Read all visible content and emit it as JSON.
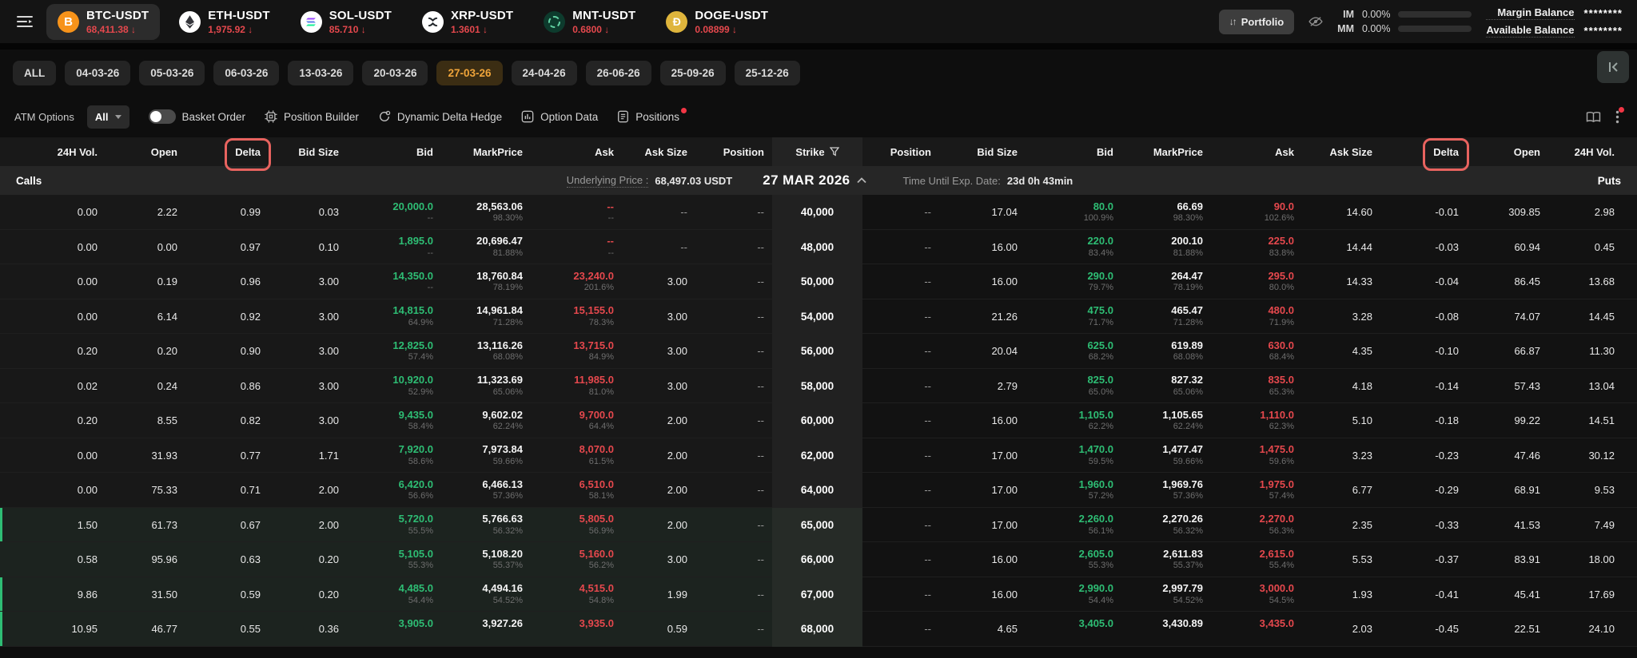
{
  "topbar": {
    "tickers": [
      {
        "symbol": "BTC-USDT",
        "price": "68,411.38",
        "direction": "down",
        "icon": "btc",
        "active": true
      },
      {
        "symbol": "ETH-USDT",
        "price": "1,975.92",
        "direction": "down",
        "icon": "eth",
        "active": false
      },
      {
        "symbol": "SOL-USDT",
        "price": "85.710",
        "direction": "down",
        "icon": "sol",
        "active": false
      },
      {
        "symbol": "XRP-USDT",
        "price": "1.3601",
        "direction": "down",
        "icon": "xrp",
        "active": false
      },
      {
        "symbol": "MNT-USDT",
        "price": "0.6800",
        "direction": "down",
        "icon": "mnt",
        "active": false
      },
      {
        "symbol": "DOGE-USDT",
        "price": "0.08899",
        "direction": "down",
        "icon": "doge",
        "active": false
      }
    ],
    "portfolio_button": "Portfolio",
    "im_label": "IM",
    "im_value": "0.00%",
    "mm_label": "MM",
    "mm_value": "0.00%",
    "margin_balance_label": "Margin Balance",
    "margin_balance_value": "********",
    "available_balance_label": "Available Balance",
    "available_balance_value": "********"
  },
  "expiry_tabs": {
    "items": [
      "ALL",
      "04-03-26",
      "05-03-26",
      "06-03-26",
      "13-03-26",
      "20-03-26",
      "27-03-26",
      "24-04-26",
      "26-06-26",
      "25-09-26",
      "25-12-26"
    ],
    "active": "27-03-26"
  },
  "toolbar": {
    "atm_options_label": "ATM Options",
    "atm_select_value": "All",
    "basket_order": "Basket Order",
    "position_builder": "Position Builder",
    "dynamic_delta_hedge": "Dynamic Delta Hedge",
    "option_data": "Option Data",
    "positions": "Positions"
  },
  "chain": {
    "calls_label": "Calls",
    "puts_label": "Puts",
    "underlying_price_label": "Underlying Price :",
    "underlying_price_value": "68,497.03 USDT",
    "expiry_title": "27 MAR 2026",
    "time_until_label": "Time Until Exp. Date:",
    "time_until_value": "23d 0h 43min",
    "calls_headers": [
      "24H Vol.",
      "Open",
      "Delta",
      "Bid Size",
      "Bid",
      "MarkPrice",
      "Ask",
      "Ask Size",
      "Position"
    ],
    "strike_header": "Strike",
    "puts_headers": [
      "Position",
      "Bid Size",
      "Bid",
      "MarkPrice",
      "Ask",
      "Ask Size",
      "Delta",
      "Open",
      "24H Vol."
    ],
    "highlighted_header": "Delta",
    "rows": [
      {
        "strike": "40,000",
        "accent": false,
        "near": false,
        "calls": {
          "vol": "0.00",
          "open": "2.22",
          "delta": "0.99",
          "bidSize": "0.03",
          "bid": "20,000.0",
          "bidPct": "--",
          "mark": "28,563.06",
          "markPct": "98.30%",
          "ask": "--",
          "askPct": "--",
          "askSize": "--",
          "pos": "--"
        },
        "puts": {
          "pos": "--",
          "bidSize": "17.04",
          "bid": "80.0",
          "bidPct": "100.9%",
          "mark": "66.69",
          "markPct": "98.30%",
          "ask": "90.0",
          "askPct": "102.6%",
          "askSize": "14.60",
          "delta": "-0.01",
          "open": "309.85",
          "vol": "2.98"
        }
      },
      {
        "strike": "48,000",
        "accent": false,
        "near": false,
        "calls": {
          "vol": "0.00",
          "open": "0.00",
          "delta": "0.97",
          "bidSize": "0.10",
          "bid": "1,895.0",
          "bidPct": "--",
          "mark": "20,696.47",
          "markPct": "81.88%",
          "ask": "--",
          "askPct": "--",
          "askSize": "--",
          "pos": "--"
        },
        "puts": {
          "pos": "--",
          "bidSize": "16.00",
          "bid": "220.0",
          "bidPct": "83.4%",
          "mark": "200.10",
          "markPct": "81.88%",
          "ask": "225.0",
          "askPct": "83.8%",
          "askSize": "14.44",
          "delta": "-0.03",
          "open": "60.94",
          "vol": "0.45"
        }
      },
      {
        "strike": "50,000",
        "accent": false,
        "near": false,
        "calls": {
          "vol": "0.00",
          "open": "0.19",
          "delta": "0.96",
          "bidSize": "3.00",
          "bid": "14,350.0",
          "bidPct": "--",
          "mark": "18,760.84",
          "markPct": "78.19%",
          "ask": "23,240.0",
          "askPct": "201.6%",
          "askSize": "3.00",
          "pos": "--"
        },
        "puts": {
          "pos": "--",
          "bidSize": "16.00",
          "bid": "290.0",
          "bidPct": "79.7%",
          "mark": "264.47",
          "markPct": "78.19%",
          "ask": "295.0",
          "askPct": "80.0%",
          "askSize": "14.33",
          "delta": "-0.04",
          "open": "86.45",
          "vol": "13.68"
        }
      },
      {
        "strike": "54,000",
        "accent": false,
        "near": false,
        "calls": {
          "vol": "0.00",
          "open": "6.14",
          "delta": "0.92",
          "bidSize": "3.00",
          "bid": "14,815.0",
          "bidPct": "64.9%",
          "mark": "14,961.84",
          "markPct": "71.28%",
          "ask": "15,155.0",
          "askPct": "78.3%",
          "askSize": "3.00",
          "pos": "--"
        },
        "puts": {
          "pos": "--",
          "bidSize": "21.26",
          "bid": "475.0",
          "bidPct": "71.7%",
          "mark": "465.47",
          "markPct": "71.28%",
          "ask": "480.0",
          "askPct": "71.9%",
          "askSize": "3.28",
          "delta": "-0.08",
          "open": "74.07",
          "vol": "14.45"
        }
      },
      {
        "strike": "56,000",
        "accent": false,
        "near": false,
        "calls": {
          "vol": "0.20",
          "open": "0.20",
          "delta": "0.90",
          "bidSize": "3.00",
          "bid": "12,825.0",
          "bidPct": "57.4%",
          "mark": "13,116.26",
          "markPct": "68.08%",
          "ask": "13,715.0",
          "askPct": "84.9%",
          "askSize": "3.00",
          "pos": "--"
        },
        "puts": {
          "pos": "--",
          "bidSize": "20.04",
          "bid": "625.0",
          "bidPct": "68.2%",
          "mark": "619.89",
          "markPct": "68.08%",
          "ask": "630.0",
          "askPct": "68.4%",
          "askSize": "4.35",
          "delta": "-0.10",
          "open": "66.87",
          "vol": "11.30"
        }
      },
      {
        "strike": "58,000",
        "accent": false,
        "near": false,
        "calls": {
          "vol": "0.02",
          "open": "0.24",
          "delta": "0.86",
          "bidSize": "3.00",
          "bid": "10,920.0",
          "bidPct": "52.9%",
          "mark": "11,323.69",
          "markPct": "65.06%",
          "ask": "11,985.0",
          "askPct": "81.0%",
          "askSize": "3.00",
          "pos": "--"
        },
        "puts": {
          "pos": "--",
          "bidSize": "2.79",
          "bid": "825.0",
          "bidPct": "65.0%",
          "mark": "827.32",
          "markPct": "65.06%",
          "ask": "835.0",
          "askPct": "65.3%",
          "askSize": "4.18",
          "delta": "-0.14",
          "open": "57.43",
          "vol": "13.04"
        }
      },
      {
        "strike": "60,000",
        "accent": false,
        "near": false,
        "calls": {
          "vol": "0.20",
          "open": "8.55",
          "delta": "0.82",
          "bidSize": "3.00",
          "bid": "9,435.0",
          "bidPct": "58.4%",
          "mark": "9,602.02",
          "markPct": "62.24%",
          "ask": "9,700.0",
          "askPct": "64.4%",
          "askSize": "2.00",
          "pos": "--"
        },
        "puts": {
          "pos": "--",
          "bidSize": "16.00",
          "bid": "1,105.0",
          "bidPct": "62.2%",
          "mark": "1,105.65",
          "markPct": "62.24%",
          "ask": "1,110.0",
          "askPct": "62.3%",
          "askSize": "5.10",
          "delta": "-0.18",
          "open": "99.22",
          "vol": "14.51"
        }
      },
      {
        "strike": "62,000",
        "accent": false,
        "near": false,
        "calls": {
          "vol": "0.00",
          "open": "31.93",
          "delta": "0.77",
          "bidSize": "1.71",
          "bid": "7,920.0",
          "bidPct": "58.6%",
          "mark": "7,973.84",
          "markPct": "59.66%",
          "ask": "8,070.0",
          "askPct": "61.5%",
          "askSize": "2.00",
          "pos": "--"
        },
        "puts": {
          "pos": "--",
          "bidSize": "17.00",
          "bid": "1,470.0",
          "bidPct": "59.5%",
          "mark": "1,477.47",
          "markPct": "59.66%",
          "ask": "1,475.0",
          "askPct": "59.6%",
          "askSize": "3.23",
          "delta": "-0.23",
          "open": "47.46",
          "vol": "30.12"
        }
      },
      {
        "strike": "64,000",
        "accent": false,
        "near": false,
        "calls": {
          "vol": "0.00",
          "open": "75.33",
          "delta": "0.71",
          "bidSize": "2.00",
          "bid": "6,420.0",
          "bidPct": "56.6%",
          "mark": "6,466.13",
          "markPct": "57.36%",
          "ask": "6,510.0",
          "askPct": "58.1%",
          "askSize": "2.00",
          "pos": "--"
        },
        "puts": {
          "pos": "--",
          "bidSize": "17.00",
          "bid": "1,960.0",
          "bidPct": "57.2%",
          "mark": "1,969.76",
          "markPct": "57.36%",
          "ask": "1,975.0",
          "askPct": "57.4%",
          "askSize": "6.77",
          "delta": "-0.29",
          "open": "68.91",
          "vol": "9.53"
        }
      },
      {
        "strike": "65,000",
        "accent": true,
        "near": true,
        "calls": {
          "vol": "1.50",
          "open": "61.73",
          "delta": "0.67",
          "bidSize": "2.00",
          "bid": "5,720.0",
          "bidPct": "55.5%",
          "mark": "5,766.63",
          "markPct": "56.32%",
          "ask": "5,805.0",
          "askPct": "56.9%",
          "askSize": "2.00",
          "pos": "--"
        },
        "puts": {
          "pos": "--",
          "bidSize": "17.00",
          "bid": "2,260.0",
          "bidPct": "56.1%",
          "mark": "2,270.26",
          "markPct": "56.32%",
          "ask": "2,270.0",
          "askPct": "56.3%",
          "askSize": "2.35",
          "delta": "-0.33",
          "open": "41.53",
          "vol": "7.49"
        }
      },
      {
        "strike": "66,000",
        "accent": false,
        "near": true,
        "calls": {
          "vol": "0.58",
          "open": "95.96",
          "delta": "0.63",
          "bidSize": "0.20",
          "bid": "5,105.0",
          "bidPct": "55.3%",
          "mark": "5,108.20",
          "markPct": "55.37%",
          "ask": "5,160.0",
          "askPct": "56.2%",
          "askSize": "3.00",
          "pos": "--"
        },
        "puts": {
          "pos": "--",
          "bidSize": "16.00",
          "bid": "2,605.0",
          "bidPct": "55.3%",
          "mark": "2,611.83",
          "markPct": "55.37%",
          "ask": "2,615.0",
          "askPct": "55.4%",
          "askSize": "5.53",
          "delta": "-0.37",
          "open": "83.91",
          "vol": "18.00"
        }
      },
      {
        "strike": "67,000",
        "accent": true,
        "near": true,
        "calls": {
          "vol": "9.86",
          "open": "31.50",
          "delta": "0.59",
          "bidSize": "0.20",
          "bid": "4,485.0",
          "bidPct": "54.4%",
          "mark": "4,494.16",
          "markPct": "54.52%",
          "ask": "4,515.0",
          "askPct": "54.8%",
          "askSize": "1.99",
          "pos": "--"
        },
        "puts": {
          "pos": "--",
          "bidSize": "16.00",
          "bid": "2,990.0",
          "bidPct": "54.4%",
          "mark": "2,997.79",
          "markPct": "54.52%",
          "ask": "3,000.0",
          "askPct": "54.5%",
          "askSize": "1.93",
          "delta": "-0.41",
          "open": "45.41",
          "vol": "17.69"
        }
      },
      {
        "strike": "68,000",
        "accent": true,
        "near": true,
        "calls": {
          "vol": "10.95",
          "open": "46.77",
          "delta": "0.55",
          "bidSize": "0.36",
          "bid": "3,905.0",
          "bidPct": "",
          "mark": "3,927.26",
          "markPct": "",
          "ask": "3,935.0",
          "askPct": "",
          "askSize": "0.59",
          "pos": "--"
        },
        "puts": {
          "pos": "--",
          "bidSize": "4.65",
          "bid": "3,405.0",
          "bidPct": "",
          "mark": "3,430.89",
          "markPct": "",
          "ask": "3,435.0",
          "askPct": "",
          "askSize": "2.03",
          "delta": "-0.45",
          "open": "22.51",
          "vol": "24.10"
        }
      }
    ]
  },
  "colors": {
    "up_green": "#2ebd74",
    "down_red": "#e5484d",
    "accent_orange": "#efa43a",
    "delta_highlight_border": "#e8635f",
    "badge_red": "#f23645"
  }
}
